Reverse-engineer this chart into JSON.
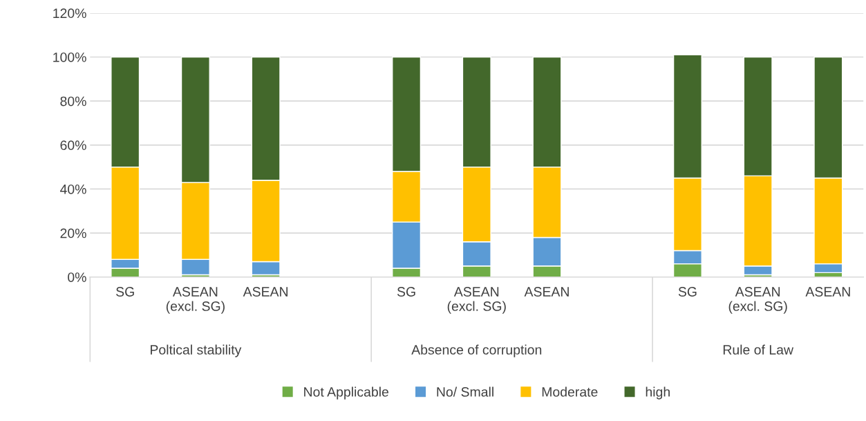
{
  "chart_data": {
    "type": "bar",
    "stacked": true,
    "categories": [
      "SG",
      "ASEAN\n(excl. SG)",
      "ASEAN",
      null,
      "SG",
      "ASEAN\n(excl. SG)",
      "ASEAN",
      null,
      "SG",
      "ASEAN\n(excl. SG)",
      "ASEAN"
    ],
    "series": [
      {
        "name": "Not Applicable",
        "color": "#70ad47",
        "values": [
          4,
          1,
          1,
          null,
          4,
          5,
          5,
          null,
          6,
          1,
          2
        ]
      },
      {
        "name": "No/ Small",
        "color": "#5b9bd5",
        "values": [
          4,
          7,
          6,
          null,
          21,
          11,
          13,
          null,
          6,
          4,
          4
        ]
      },
      {
        "name": "Moderate",
        "color": "#ffc000",
        "values": [
          42,
          35,
          37,
          null,
          23,
          34,
          32,
          null,
          33,
          41,
          39
        ]
      },
      {
        "name": "high",
        "color": "#43682b",
        "values": [
          50,
          57,
          56,
          null,
          52,
          50,
          50,
          null,
          56,
          54,
          55
        ]
      }
    ],
    "annotations": [
      "Poltical stability",
      "Absence of corruption",
      "Rule of Law"
    ],
    "ylim": [
      0,
      120
    ],
    "yticks": [
      {
        "value": 0,
        "label": "0%"
      },
      {
        "value": 20,
        "label": "20%"
      },
      {
        "value": 40,
        "label": "40%"
      },
      {
        "value": 60,
        "label": "60%"
      },
      {
        "value": 80,
        "label": "80%"
      },
      {
        "value": 100,
        "label": "100%"
      },
      {
        "value": 120,
        "label": "120%"
      }
    ],
    "grid": "y",
    "legend": "bottom"
  }
}
